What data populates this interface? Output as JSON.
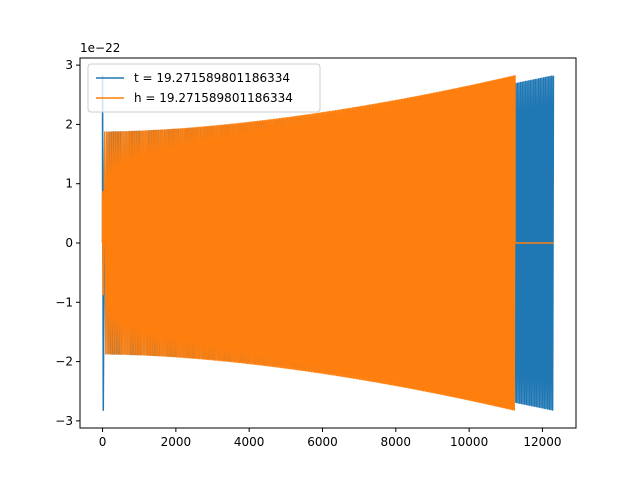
{
  "chart_data": {
    "type": "line",
    "title": "",
    "xlabel": "",
    "ylabel": "",
    "y_scale_label": "1e−22",
    "xlim": [
      -615,
      12915
    ],
    "ylim": [
      -3.12,
      3.12
    ],
    "xticks": [
      0,
      2000,
      4000,
      6000,
      8000,
      10000,
      12000
    ],
    "xtick_labels": [
      "0",
      "2000",
      "4000",
      "6000",
      "8000",
      "10000",
      "12000"
    ],
    "yticks": [
      -3,
      -2,
      -1,
      0,
      1,
      2,
      3
    ],
    "ytick_labels": [
      "−3",
      "−2",
      "−1",
      "0",
      "1",
      "2",
      "3"
    ],
    "grid": false,
    "legend_position": "upper-left",
    "series": [
      {
        "name": "t = 19.271589801186334",
        "color": "#1f77b4",
        "x_start": 0,
        "x_end": 12300,
        "initial_spike": 2.82,
        "amplitude_start": 1.87,
        "amplitude_end": 2.82,
        "tail_after": null
      },
      {
        "name": "h = 19.271589801186334",
        "color": "#ff7f0e",
        "x_start": 0,
        "x_end": 11250,
        "initial_spike": 0.87,
        "amplitude_start": 1.87,
        "amplitude_end": 2.82,
        "tail_after": 0,
        "tail_end": 12300
      }
    ]
  }
}
